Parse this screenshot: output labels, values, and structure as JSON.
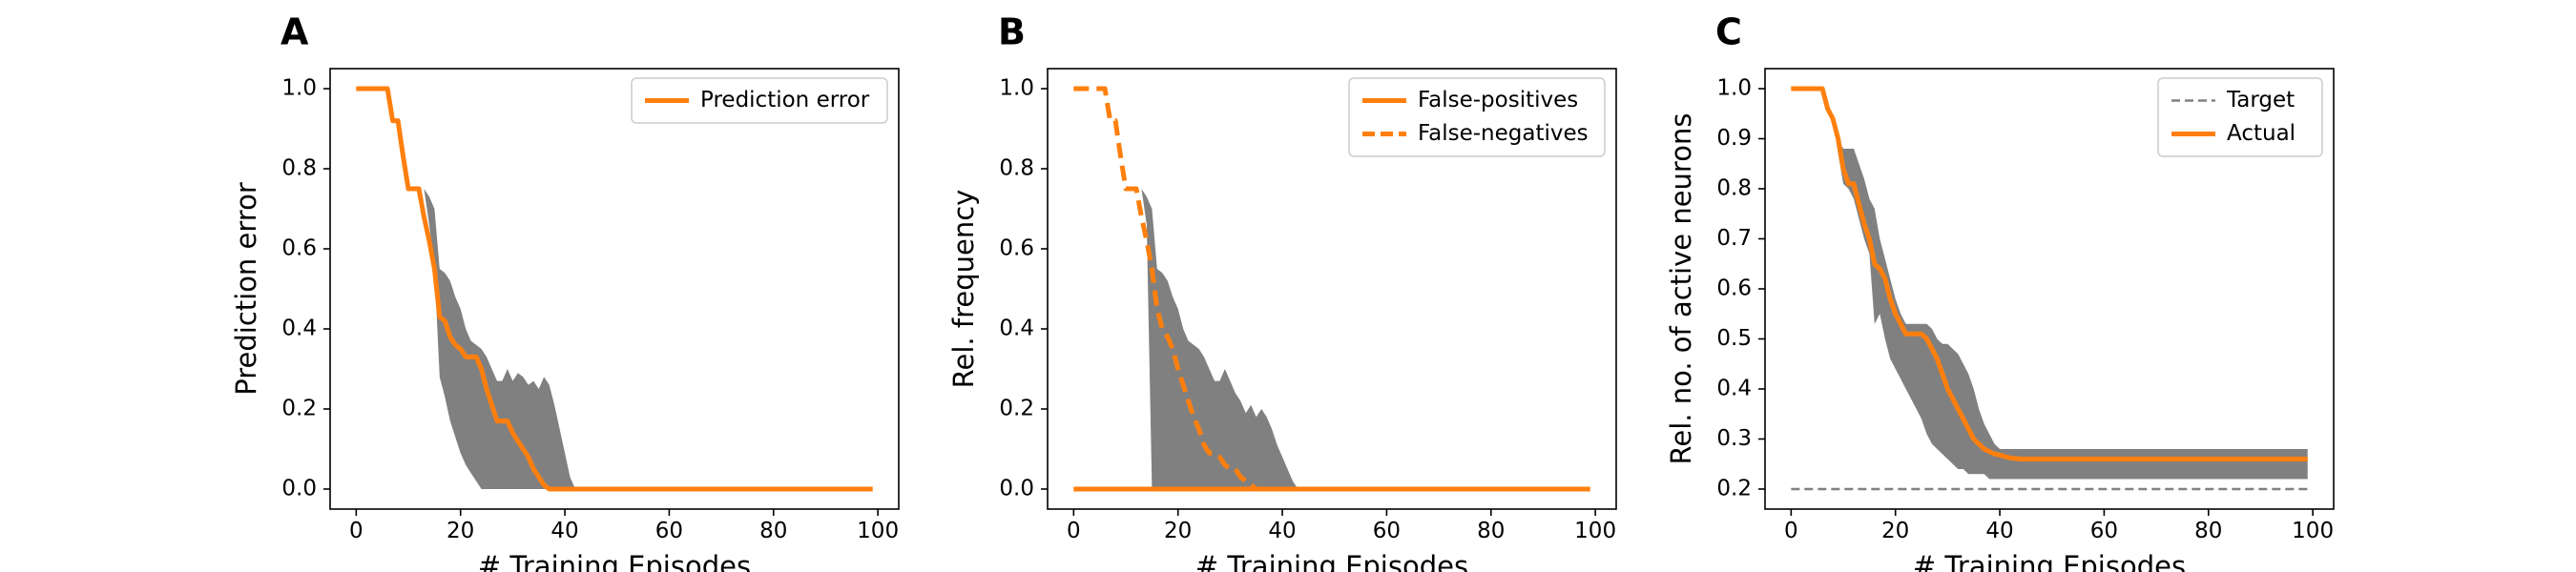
{
  "colors": {
    "orange": "#ff7f0e",
    "band": "#808080",
    "target": "#808080",
    "axis": "#000000",
    "legend_border": "#cccccc"
  },
  "chart_data": [
    {
      "panel": "A",
      "type": "line",
      "xlabel": "# Training Episodes",
      "ylabel": "Prediction error",
      "xlim": [
        -5,
        104
      ],
      "ylim": [
        -0.05,
        1.05
      ],
      "xticks": [
        0,
        20,
        40,
        60,
        80,
        100
      ],
      "yticks": [
        0.0,
        0.2,
        0.4,
        0.6,
        0.8,
        1.0
      ],
      "ytick_labels": [
        "0.0",
        "0.2",
        "0.4",
        "0.6",
        "0.8",
        "1.0"
      ],
      "legend": {
        "position": "upper right"
      },
      "band": {
        "x": [
          12,
          13,
          14,
          15,
          16,
          17,
          18,
          19,
          20,
          21,
          22,
          23,
          24,
          25,
          26,
          27,
          28,
          29,
          30,
          31,
          32,
          33,
          34,
          35,
          36,
          37,
          38,
          39,
          40,
          41,
          42,
          43
        ],
        "upper": [
          0.75,
          0.75,
          0.73,
          0.7,
          0.55,
          0.54,
          0.52,
          0.48,
          0.45,
          0.4,
          0.37,
          0.36,
          0.35,
          0.33,
          0.3,
          0.27,
          0.27,
          0.3,
          0.27,
          0.29,
          0.28,
          0.26,
          0.27,
          0.25,
          0.28,
          0.26,
          0.21,
          0.15,
          0.09,
          0.03,
          0.0,
          0.0
        ],
        "lower": [
          0.75,
          0.75,
          0.66,
          0.55,
          0.28,
          0.23,
          0.17,
          0.13,
          0.09,
          0.06,
          0.04,
          0.02,
          0.0,
          0.0,
          0.0,
          0.0,
          0.0,
          0.0,
          0.0,
          0.0,
          0.0,
          0.0,
          0.0,
          0.0,
          0.0,
          0.0,
          0.0,
          0.0,
          0.0,
          0.0,
          0.0,
          0.0
        ]
      },
      "series": [
        {
          "name": "Prediction error",
          "style": "solid",
          "x": [
            0,
            6,
            7,
            8,
            9,
            10,
            11,
            12,
            13,
            14,
            15,
            16,
            17,
            18,
            19,
            20,
            21,
            22,
            23,
            24,
            25,
            26,
            27,
            28,
            29,
            30,
            31,
            32,
            33,
            34,
            35,
            36,
            37,
            38,
            99
          ],
          "y": [
            1.0,
            1.0,
            0.92,
            0.92,
            0.83,
            0.75,
            0.75,
            0.75,
            0.68,
            0.62,
            0.55,
            0.43,
            0.42,
            0.38,
            0.36,
            0.35,
            0.33,
            0.33,
            0.33,
            0.3,
            0.25,
            0.21,
            0.17,
            0.17,
            0.17,
            0.14,
            0.12,
            0.1,
            0.08,
            0.05,
            0.03,
            0.01,
            0.0,
            0.0,
            0.0
          ]
        }
      ]
    },
    {
      "panel": "B",
      "type": "line",
      "xlabel": "# Training Episodes",
      "ylabel": "Rel. frequency",
      "xlim": [
        -5,
        104
      ],
      "ylim": [
        -0.05,
        1.05
      ],
      "xticks": [
        0,
        20,
        40,
        60,
        80,
        100
      ],
      "yticks": [
        0.0,
        0.2,
        0.4,
        0.6,
        0.8,
        1.0
      ],
      "ytick_labels": [
        "0.0",
        "0.2",
        "0.4",
        "0.6",
        "0.8",
        "1.0"
      ],
      "legend": {
        "position": "upper right"
      },
      "band": {
        "x": [
          12,
          13,
          14,
          15,
          16,
          17,
          18,
          19,
          20,
          21,
          22,
          23,
          24,
          25,
          26,
          27,
          28,
          29,
          30,
          31,
          32,
          33,
          34,
          35,
          36,
          37,
          38,
          39,
          40,
          41,
          42,
          43
        ],
        "upper": [
          0.75,
          0.75,
          0.73,
          0.7,
          0.55,
          0.54,
          0.52,
          0.48,
          0.45,
          0.4,
          0.37,
          0.36,
          0.35,
          0.33,
          0.3,
          0.27,
          0.27,
          0.3,
          0.27,
          0.24,
          0.22,
          0.19,
          0.21,
          0.18,
          0.2,
          0.18,
          0.15,
          0.11,
          0.08,
          0.05,
          0.02,
          0.0
        ],
        "lower": [
          0.75,
          0.75,
          0.66,
          0.0,
          0.0,
          0.0,
          0.0,
          0.0,
          0.0,
          0.0,
          0.0,
          0.0,
          0.0,
          0.0,
          0.0,
          0.0,
          0.0,
          0.0,
          0.0,
          0.0,
          0.0,
          0.0,
          0.0,
          0.0,
          0.0,
          0.0,
          0.0,
          0.0,
          0.0,
          0.0,
          0.0,
          0.0
        ]
      },
      "series": [
        {
          "name": "False-positives",
          "style": "solid",
          "x": [
            0,
            99
          ],
          "y": [
            0.0,
            0.0
          ]
        },
        {
          "name": "False-negatives",
          "style": "dashed",
          "x": [
            0,
            6,
            7,
            8,
            9,
            10,
            11,
            12,
            13,
            14,
            15,
            16,
            17,
            18,
            19,
            20,
            21,
            22,
            23,
            24,
            25,
            26,
            27,
            28,
            29,
            30,
            31,
            32,
            33,
            34,
            35
          ],
          "y": [
            1.0,
            1.0,
            0.92,
            0.92,
            0.83,
            0.75,
            0.75,
            0.75,
            0.68,
            0.62,
            0.55,
            0.45,
            0.4,
            0.38,
            0.35,
            0.3,
            0.26,
            0.22,
            0.18,
            0.15,
            0.11,
            0.09,
            0.09,
            0.08,
            0.06,
            0.05,
            0.05,
            0.03,
            0.02,
            0.01,
            0.0
          ]
        }
      ]
    },
    {
      "panel": "C",
      "type": "line",
      "xlabel": "# Training Episodes",
      "ylabel": "Rel. no. of active neurons",
      "xlim": [
        -5,
        104
      ],
      "ylim": [
        0.16,
        1.04
      ],
      "xticks": [
        0,
        20,
        40,
        60,
        80,
        100
      ],
      "yticks": [
        0.2,
        0.3,
        0.4,
        0.5,
        0.6,
        0.7,
        0.8,
        0.9,
        1.0
      ],
      "ytick_labels": [
        "0.2",
        "0.3",
        "0.4",
        "0.5",
        "0.6",
        "0.7",
        "0.8",
        "0.9",
        "1.0"
      ],
      "legend": {
        "position": "upper right"
      },
      "band": {
        "x": [
          8,
          9,
          10,
          11,
          12,
          13,
          14,
          15,
          16,
          17,
          18,
          19,
          20,
          21,
          22,
          23,
          24,
          25,
          26,
          27,
          28,
          29,
          30,
          31,
          32,
          33,
          34,
          35,
          36,
          37,
          38,
          39,
          40,
          41,
          42,
          43,
          44,
          45,
          46,
          47,
          48,
          99
        ],
        "upper": [
          0.94,
          0.9,
          0.88,
          0.88,
          0.88,
          0.85,
          0.82,
          0.78,
          0.76,
          0.7,
          0.66,
          0.62,
          0.58,
          0.55,
          0.53,
          0.53,
          0.53,
          0.53,
          0.53,
          0.52,
          0.5,
          0.49,
          0.49,
          0.48,
          0.47,
          0.45,
          0.43,
          0.4,
          0.36,
          0.33,
          0.31,
          0.29,
          0.28,
          0.28,
          0.28,
          0.28,
          0.28,
          0.28,
          0.28,
          0.28,
          0.28,
          0.28
        ],
        "lower": [
          0.94,
          0.87,
          0.81,
          0.8,
          0.78,
          0.74,
          0.7,
          0.67,
          0.53,
          0.55,
          0.5,
          0.46,
          0.44,
          0.42,
          0.4,
          0.38,
          0.36,
          0.34,
          0.31,
          0.29,
          0.28,
          0.27,
          0.26,
          0.25,
          0.24,
          0.24,
          0.23,
          0.23,
          0.23,
          0.23,
          0.22,
          0.22,
          0.22,
          0.22,
          0.22,
          0.22,
          0.22,
          0.22,
          0.22,
          0.22,
          0.22,
          0.22
        ]
      },
      "series": [
        {
          "name": "Target",
          "style": "dashed-thin",
          "x": [
            0,
            99
          ],
          "y": [
            0.2,
            0.2
          ]
        },
        {
          "name": "Actual",
          "style": "solid",
          "x": [
            0,
            6,
            7,
            8,
            9,
            10,
            11,
            12,
            13,
            14,
            15,
            16,
            17,
            18,
            19,
            20,
            21,
            22,
            23,
            24,
            25,
            26,
            27,
            28,
            29,
            30,
            31,
            32,
            33,
            34,
            35,
            36,
            37,
            38,
            39,
            40,
            41,
            42,
            44,
            46,
            48,
            50,
            99
          ],
          "y": [
            1.0,
            1.0,
            0.96,
            0.94,
            0.9,
            0.84,
            0.81,
            0.81,
            0.77,
            0.73,
            0.7,
            0.65,
            0.64,
            0.62,
            0.58,
            0.55,
            0.53,
            0.51,
            0.51,
            0.51,
            0.51,
            0.5,
            0.48,
            0.46,
            0.43,
            0.4,
            0.38,
            0.36,
            0.34,
            0.32,
            0.3,
            0.29,
            0.28,
            0.275,
            0.27,
            0.268,
            0.265,
            0.262,
            0.26,
            0.26,
            0.26,
            0.26,
            0.26
          ]
        }
      ]
    }
  ]
}
